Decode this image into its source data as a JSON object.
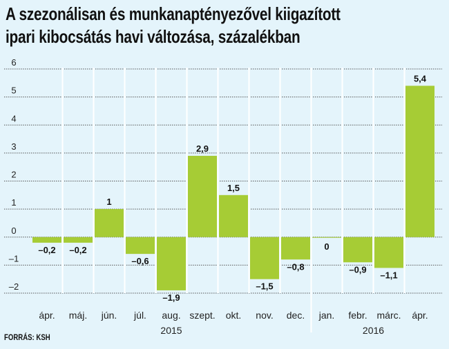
{
  "title_lines": [
    "A szezonálisan és munkanaptényezővel kiigazított",
    "ipari kibocsátás havi változása, százalékban"
  ],
  "source": "FORRÁS: KSH",
  "colors": {
    "bar": "#a6cc35",
    "background": "#e4f4fb",
    "grid": "#555555",
    "separator": "#ffffff"
  },
  "chart_data": {
    "type": "bar",
    "title": "A szezonálisan és munkanaptényezővel kiigazított ipari kibocsátás havi változása, százalékban",
    "categories": [
      "ápr.",
      "máj.",
      "jún.",
      "júl.",
      "aug.",
      "szept.",
      "okt.",
      "nov.",
      "dec.",
      "jan.",
      "febr.",
      "márc.",
      "ápr."
    ],
    "values": [
      -0.2,
      -0.2,
      1,
      -0.6,
      -1.9,
      2.9,
      1.5,
      -1.5,
      -0.8,
      0,
      -0.9,
      -1.1,
      5.4
    ],
    "value_labels": [
      "–0,2",
      "–0,2",
      "1",
      "–0,6",
      "–1,9",
      "2,9",
      "1,5",
      "–1,5",
      "–0,8",
      "0",
      "–0,9",
      "–1,1",
      "5,4"
    ],
    "years": [
      {
        "label": "2015",
        "from": 0,
        "to": 8
      },
      {
        "label": "2016",
        "from": 9,
        "to": 12
      }
    ],
    "yticks": [
      6,
      5,
      4,
      3,
      2,
      1,
      0,
      -1,
      -2
    ],
    "ytick_labels": [
      "6",
      "5",
      "4",
      "3",
      "2",
      "1",
      "0",
      "–1",
      "–2"
    ],
    "ylim": [
      -2,
      6
    ],
    "xlabel": "",
    "ylabel": "",
    "grid": true,
    "legend": "none"
  }
}
